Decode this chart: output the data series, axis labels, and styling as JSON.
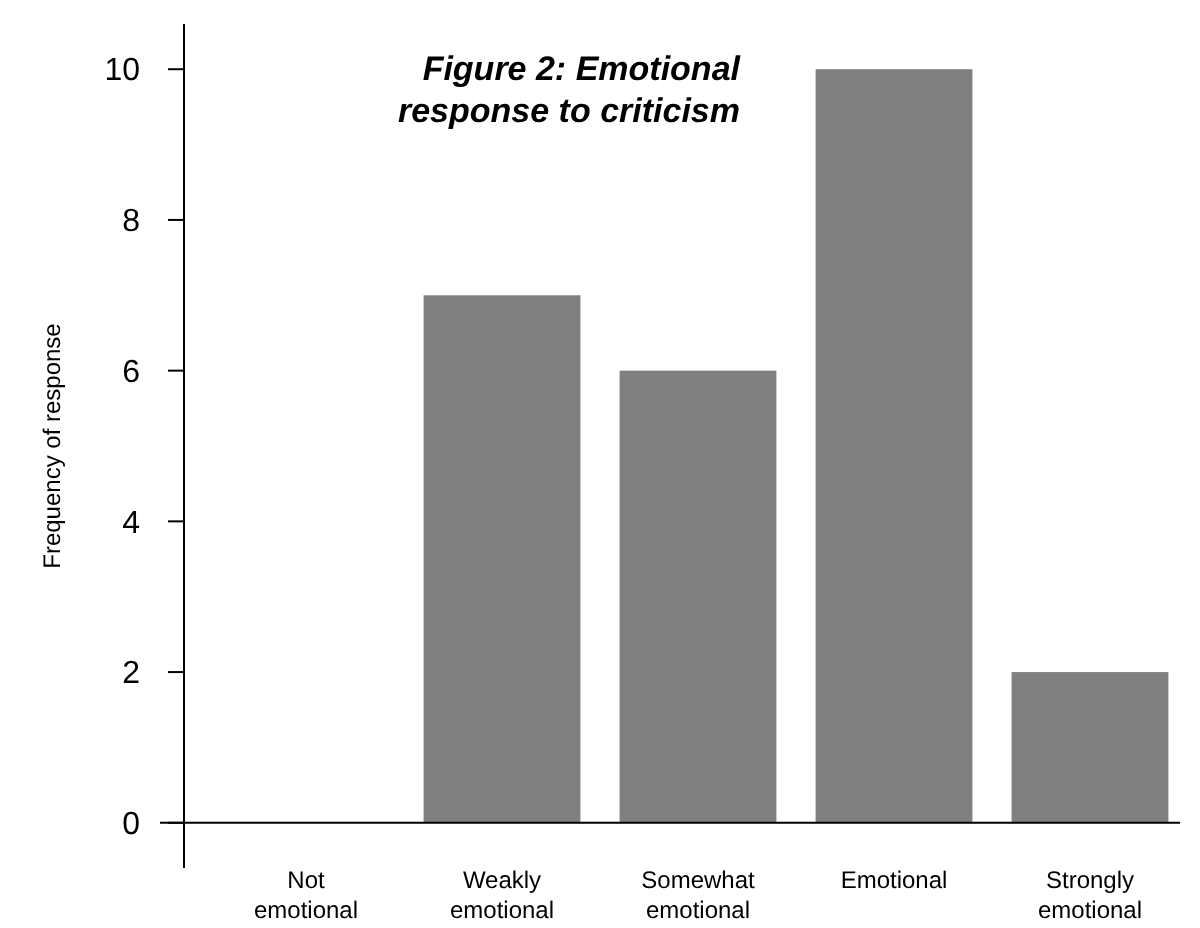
{
  "chart_data": {
    "type": "bar",
    "title": "Figure 2: Emotional\nresponse to criticism",
    "ylabel": "Frequency of response",
    "categories": [
      "Not emotional",
      "Weakly emotional",
      "Somewhat emotional",
      "Emotional",
      "Strongly emotional"
    ],
    "values": [
      0,
      7,
      6,
      10,
      2
    ],
    "color": "#808080",
    "ylim": [
      -0.6,
      10.6
    ],
    "yticks": [
      0,
      2,
      4,
      6,
      8,
      10
    ],
    "grid": false
  }
}
